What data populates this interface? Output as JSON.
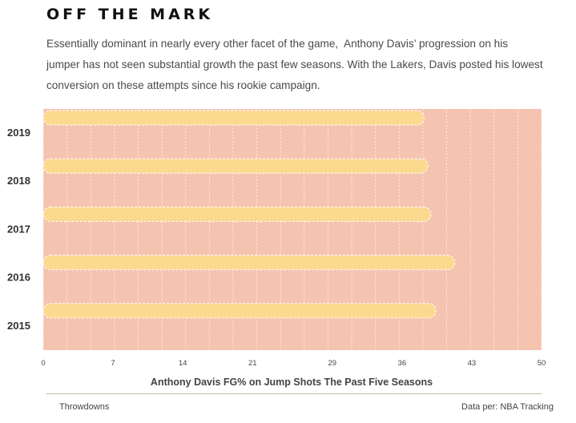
{
  "header": {
    "title": "OFF THE MARK",
    "subtitle": "Essentially dominant in nearly every other facet of the game,  Anthony Davis’ progression on his jumper has not seen substantial growth the past few seasons. With the Lakers, Davis posted his lowest conversion on these attempts since his rookie campaign."
  },
  "footer": {
    "source": "Throwdowns",
    "credit": "Data per: NBA Tracking"
  },
  "colors": {
    "plot_background": "#f5c4b1",
    "bar_fill": "#fbd98f",
    "grid": "#ffffff",
    "axis_text": "#444444"
  },
  "chart_data": {
    "type": "bar",
    "orientation": "horizontal",
    "title": "",
    "xlabel": "Anthony Davis FG% on Jump Shots The Past Five Seasons",
    "ylabel": "",
    "categories": [
      "2019",
      "2018",
      "2017",
      "2016",
      "2015"
    ],
    "values": [
      38.2,
      38.6,
      38.9,
      41.3,
      39.4
    ],
    "xlim": [
      0,
      50
    ],
    "xticks": [
      0,
      7,
      14,
      21,
      29,
      36,
      43,
      50
    ],
    "grid": true,
    "legend": "none"
  }
}
